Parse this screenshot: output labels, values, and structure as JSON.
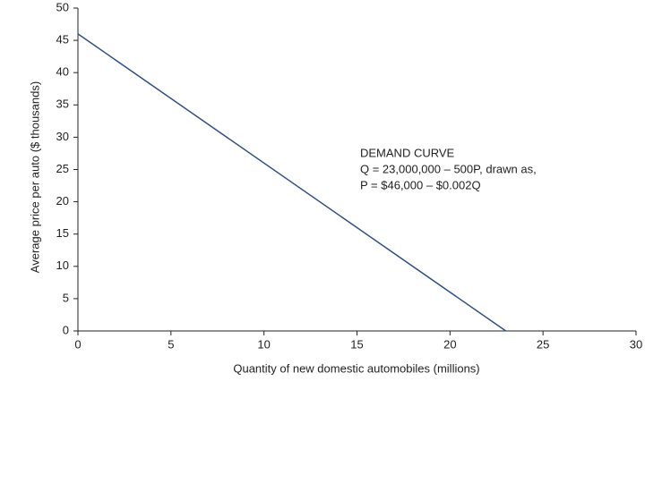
{
  "chart_data": {
    "type": "line",
    "xlabel": "Quantity of new domestic automobiles (millions)",
    "ylabel": "Average price per auto ($ thousands)",
    "annotation": [
      "DEMAND CURVE",
      "Q = 23,000,000 – 500P, drawn as,",
      "P = $46,000 – $0.002Q"
    ],
    "x": [
      0,
      23
    ],
    "series": [
      {
        "name": "Demand curve",
        "color": "#2f4f86",
        "values": [
          46,
          0
        ]
      }
    ],
    "xlim": [
      0,
      30
    ],
    "xticks": [
      0,
      5,
      10,
      15,
      20,
      25,
      30
    ],
    "ylim": [
      0,
      50
    ],
    "yticks": [
      0,
      5,
      10,
      15,
      20,
      25,
      30,
      35,
      40,
      45,
      50
    ],
    "grid": false
  }
}
